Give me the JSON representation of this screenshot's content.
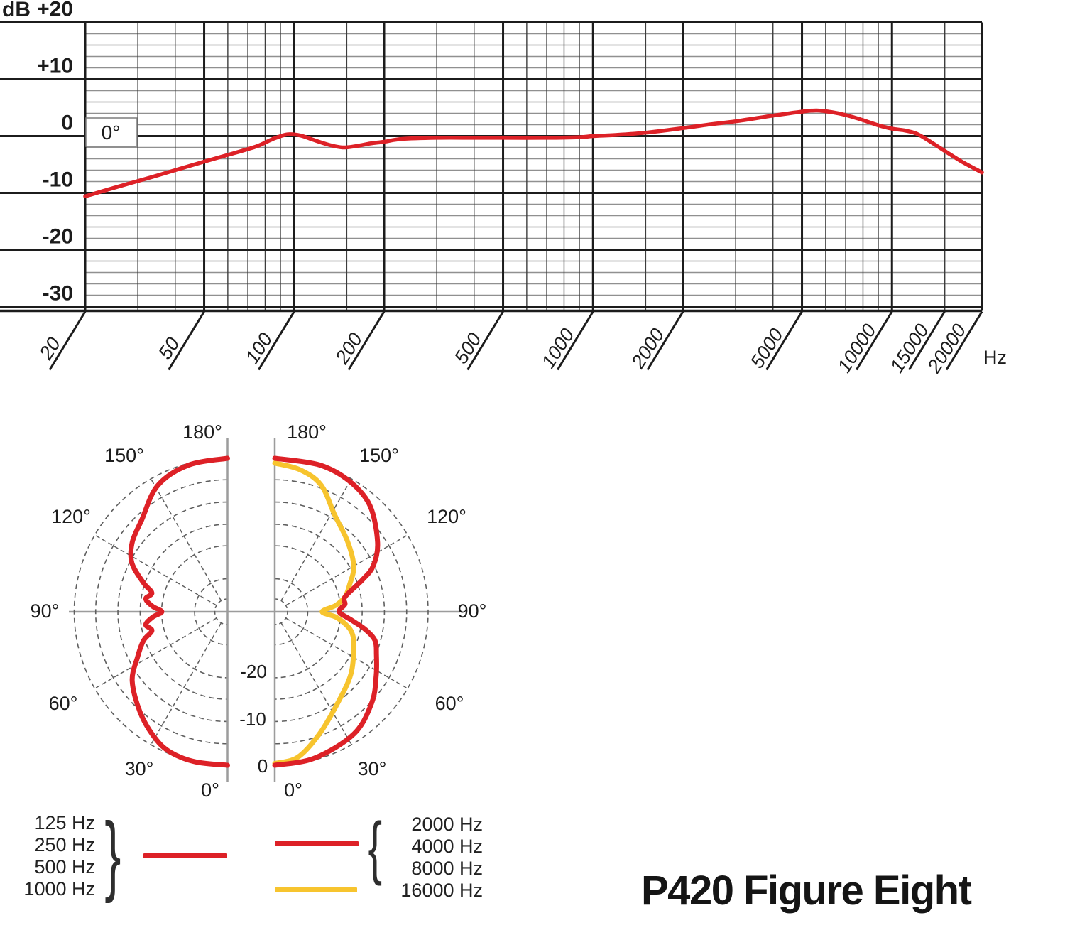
{
  "title": "P420 Figure Eight",
  "colors": {
    "red": "#dd2127",
    "yellow": "#f7c42e",
    "grid_dark": "#1c1c1c",
    "grid_mid": "#3d3d3d",
    "grid_light": "#909090",
    "polar_grid": "#5f5f5f",
    "polar_axis": "#9c9c9c",
    "text": "#1c1c1c"
  },
  "legend": {
    "left": {
      "labels": [
        "125 Hz",
        "250 Hz",
        "500 Hz",
        "1000 Hz"
      ],
      "brace": "}",
      "swatch_color_key": "red"
    },
    "right": {
      "labels": [
        "2000 Hz",
        "4000 Hz",
        "8000 Hz",
        "16000 Hz"
      ],
      "brace": "{",
      "swatch_color_key": "red",
      "extra_swatch_color_key": "yellow"
    }
  },
  "chart_data": [
    {
      "type": "line",
      "title": "Frequency response",
      "xlabel": "Hz",
      "ylabel": "dB",
      "x_scale": "log",
      "xlim": [
        20,
        20000
      ],
      "ylim": [
        -31,
        20
      ],
      "y_major_step": 10,
      "y_minor_step": 2,
      "y_tick_labels": [
        "+20",
        "+10",
        "0",
        "-10",
        "-20",
        "-30"
      ],
      "x_tick_values": [
        20,
        50,
        100,
        200,
        500,
        1000,
        2000,
        5000,
        10000,
        15000,
        20000
      ],
      "x_tick_labels": [
        "20",
        "50",
        "100",
        "200",
        "500",
        "1000",
        "2000",
        "5000",
        "10000",
        "15000",
        "20000"
      ],
      "x_major_gridlines": [
        20,
        50,
        100,
        200,
        500,
        1000,
        2000,
        5000,
        10000,
        20000
      ],
      "x_minor_gridlines": [
        30,
        40,
        60,
        70,
        80,
        90,
        150,
        300,
        400,
        600,
        700,
        800,
        900,
        1500,
        3000,
        4000,
        6000,
        7000,
        8000,
        9000,
        15000
      ],
      "grid": true,
      "legend_position": "in-plot-top-left",
      "series": [
        {
          "name": "0°",
          "color_key": "red",
          "points": [
            [
              20,
              -10.6
            ],
            [
              25,
              -9.1
            ],
            [
              32,
              -7.5
            ],
            [
              40,
              -6.0
            ],
            [
              50,
              -4.5
            ],
            [
              63,
              -3.0
            ],
            [
              75,
              -1.8
            ],
            [
              85,
              -0.5
            ],
            [
              95,
              0.3
            ],
            [
              105,
              0.1
            ],
            [
              115,
              -0.6
            ],
            [
              130,
              -1.5
            ],
            [
              145,
              -2.0
            ],
            [
              160,
              -1.8
            ],
            [
              180,
              -1.3
            ],
            [
              200,
              -1.0
            ],
            [
              230,
              -0.5
            ],
            [
              300,
              -0.3
            ],
            [
              400,
              -0.3
            ],
            [
              500,
              -0.3
            ],
            [
              700,
              -0.3
            ],
            [
              900,
              -0.2
            ],
            [
              1000,
              0.0
            ],
            [
              1200,
              0.2
            ],
            [
              1500,
              0.6
            ],
            [
              2000,
              1.4
            ],
            [
              2500,
              2.1
            ],
            [
              3000,
              2.6
            ],
            [
              4000,
              3.6
            ],
            [
              5000,
              4.3
            ],
            [
              5600,
              4.5
            ],
            [
              6300,
              4.2
            ],
            [
              7000,
              3.7
            ],
            [
              8000,
              2.8
            ],
            [
              9000,
              1.9
            ],
            [
              10000,
              1.3
            ],
            [
              11000,
              1.0
            ],
            [
              12000,
              0.5
            ],
            [
              13000,
              -0.5
            ],
            [
              15000,
              -2.6
            ],
            [
              17000,
              -4.4
            ],
            [
              20000,
              -6.4
            ]
          ]
        }
      ]
    },
    {
      "type": "polar",
      "side": "left",
      "angle_unit": "deg",
      "angle_zero": "bottom",
      "angle_labels": [
        {
          "text": "180°",
          "angle": 180
        },
        {
          "text": "150°",
          "angle": 150
        },
        {
          "text": "120°",
          "angle": 120
        },
        {
          "text": "90°",
          "angle": 90
        },
        {
          "text": "60°",
          "angle": 60
        },
        {
          "text": "30°",
          "angle": 30
        },
        {
          "text": "0°",
          "angle": 0
        }
      ],
      "series": [
        {
          "name": "125-1000 Hz",
          "color_key": "red",
          "points": [
            [
              0,
              0
            ],
            [
              12,
              0
            ],
            [
              22,
              -0.4
            ],
            [
              30,
              -1.8
            ],
            [
              41,
              -4.6
            ],
            [
              54,
              -8.1
            ],
            [
              63,
              -11.9
            ],
            [
              71,
              -14.7
            ],
            [
              76,
              -17.2
            ],
            [
              81,
              -16.1
            ],
            [
              86,
              -17.9
            ],
            [
              90,
              -20.0
            ],
            [
              94,
              -17.9
            ],
            [
              99,
              -16.1
            ],
            [
              104,
              -17.2
            ],
            [
              109,
              -14.7
            ],
            [
              117,
              -10.5
            ],
            [
              126,
              -8.1
            ],
            [
              137,
              -6.3
            ],
            [
              151,
              -2.1
            ],
            [
              165,
              -0.4
            ],
            [
              180,
              0
            ]
          ]
        }
      ]
    },
    {
      "type": "polar",
      "side": "right",
      "angle_unit": "deg",
      "angle_zero": "bottom",
      "radial_labels": [
        "-20",
        "-10",
        "0"
      ],
      "angle_labels": [
        {
          "text": "180°",
          "angle": 180
        },
        {
          "text": "150°",
          "angle": 150
        },
        {
          "text": "120°",
          "angle": 120
        },
        {
          "text": "90°",
          "angle": 90
        },
        {
          "text": "60°",
          "angle": 60
        },
        {
          "text": "30°",
          "angle": 30
        },
        {
          "text": "0°",
          "angle": 0
        }
      ],
      "series": [
        {
          "name": "2000-8000 Hz",
          "color_key": "red",
          "points": [
            [
              0,
              0
            ],
            [
              15,
              -0.4
            ],
            [
              33,
              -1.8
            ],
            [
              47,
              -4.7
            ],
            [
              58,
              -7.7
            ],
            [
              67,
              -9.8
            ],
            [
              74,
              -11.2
            ],
            [
              79,
              -14.0
            ],
            [
              84,
              -17.5
            ],
            [
              90,
              -20.3
            ],
            [
              96,
              -18.9
            ],
            [
              102,
              -18.6
            ],
            [
              110,
              -13.7
            ],
            [
              115,
              -10.2
            ],
            [
              124,
              -6.7
            ],
            [
              138,
              -2.5
            ],
            [
              150,
              -0.7
            ],
            [
              163,
              0
            ],
            [
              180,
              0
            ]
          ]
        },
        {
          "name": "16000 Hz",
          "color_key": "yellow",
          "points": [
            [
              0,
              -0.4
            ],
            [
              9,
              -1.4
            ],
            [
              20,
              -5.3
            ],
            [
              35,
              -9.8
            ],
            [
              51,
              -12.6
            ],
            [
              67,
              -15.4
            ],
            [
              75,
              -16.8
            ],
            [
              80,
              -18.6
            ],
            [
              85,
              -21.0
            ],
            [
              90,
              -24.2
            ],
            [
              96,
              -21.0
            ],
            [
              102,
              -18.6
            ],
            [
              110,
              -16.8
            ],
            [
              120,
              -14.2
            ],
            [
              134,
              -11.9
            ],
            [
              148,
              -9.1
            ],
            [
              160,
              -4.2
            ],
            [
              170,
              -2.1
            ],
            [
              180,
              -1.1
            ]
          ]
        }
      ]
    }
  ]
}
